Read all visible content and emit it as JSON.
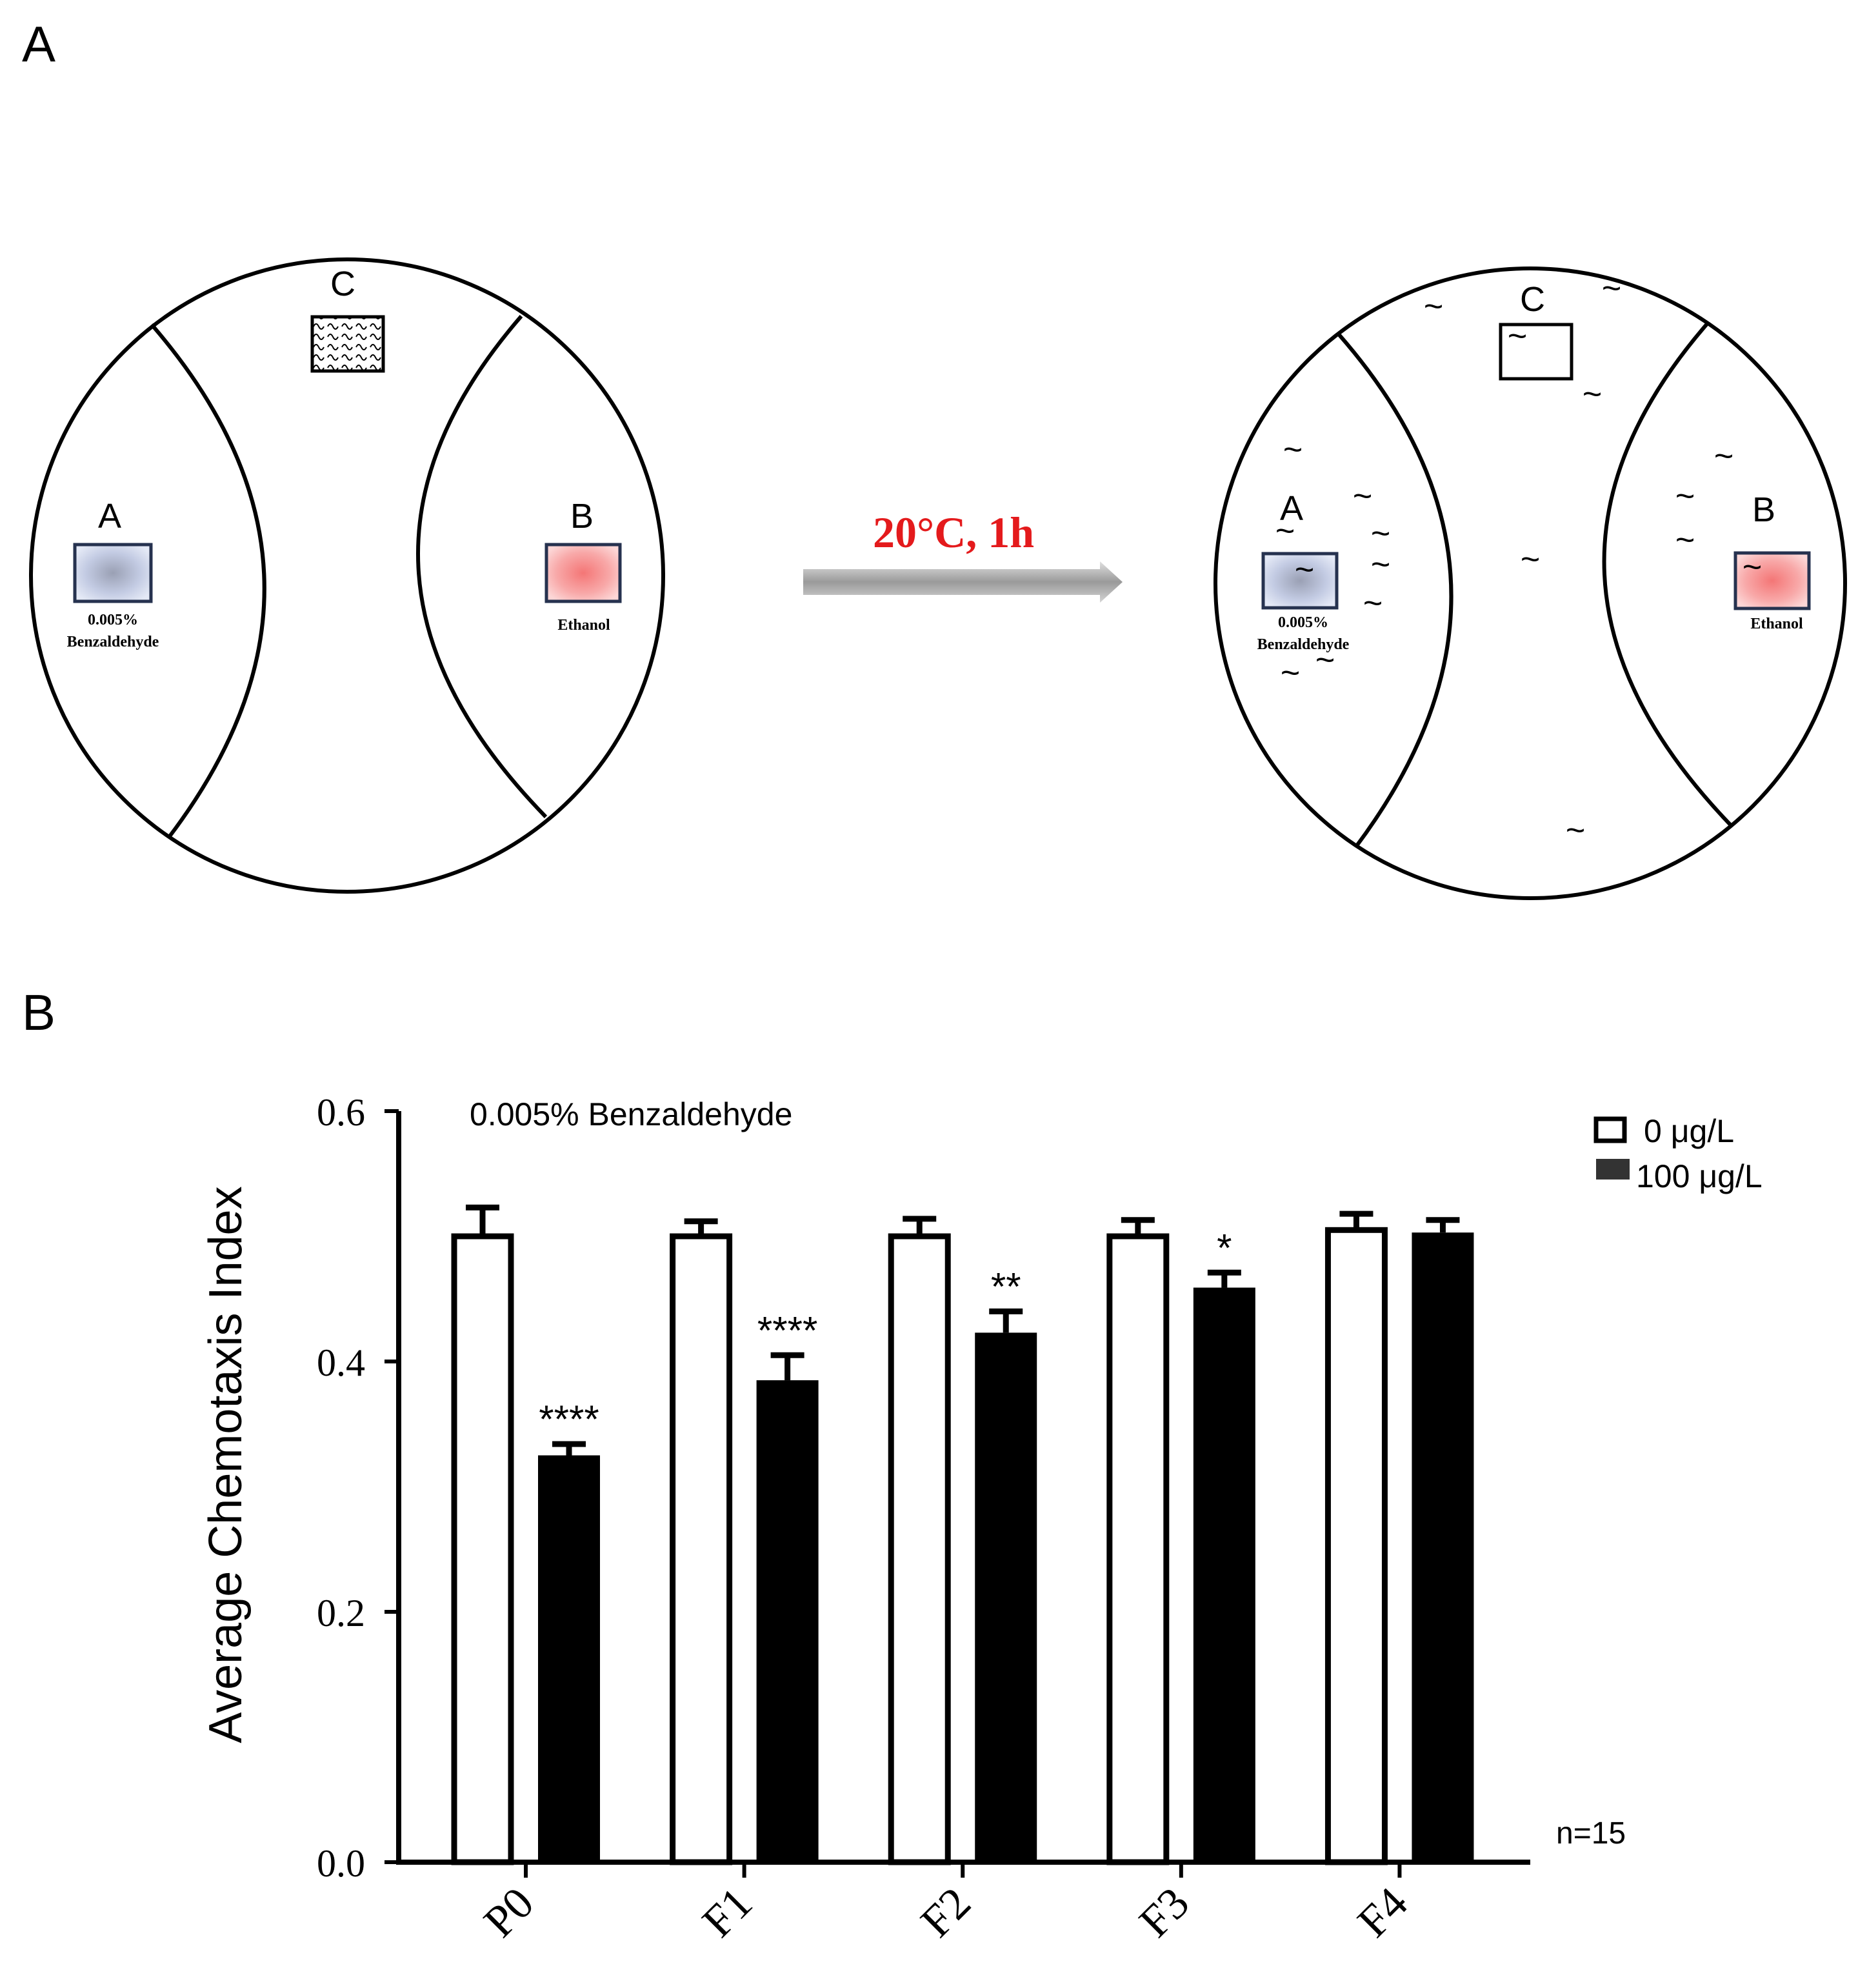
{
  "panel_a": {
    "label": "A",
    "arrow_label": "20°C, 1h",
    "left_plate": {
      "region_a_label": "A",
      "region_b_label": "B",
      "region_c_label": "C",
      "spot_a_text_1": "0.005%",
      "spot_a_text_2": "Benzaldehyde",
      "spot_b_text": "Ethanol"
    },
    "right_plate": {
      "region_a_label": "A",
      "region_b_label": "B",
      "region_c_label": "C",
      "spot_a_text_1": "0.005%",
      "spot_a_text_2": "Benzaldehyde",
      "spot_b_text": "Ethanol",
      "worm_glyph": "~"
    },
    "colors": {
      "arrow_label": "#e41a1c",
      "benzaldehyde_spot": "#aab6d8",
      "ethanol_spot": "#f08080",
      "arrow": "#a6a6a6"
    }
  },
  "panel_b": {
    "label": "B",
    "n_label": "n=15"
  },
  "chart_data": {
    "type": "bar",
    "title": "0.005% Benzaldehyde",
    "ylabel": "Average Chemotaxis Index",
    "xlabel": "",
    "categories": [
      "P0",
      "F1",
      "F2",
      "F3",
      "F4"
    ],
    "ylim": [
      0,
      0.6
    ],
    "yticks": [
      "0.0",
      "0.2",
      "0.4",
      "0.6"
    ],
    "series": [
      {
        "name": "0 μg/L",
        "color": "#ffffff",
        "values": [
          0.5,
          0.5,
          0.5,
          0.5,
          0.505
        ],
        "errors": [
          0.023,
          0.012,
          0.014,
          0.013,
          0.013
        ]
      },
      {
        "name": "100 μg/L",
        "color": "#000000",
        "values": [
          0.325,
          0.385,
          0.423,
          0.459,
          0.503
        ],
        "errors": [
          0.009,
          0.02,
          0.017,
          0.012,
          0.01
        ]
      }
    ],
    "significance": [
      "****",
      "****",
      "**",
      "*",
      ""
    ],
    "legend_position": "top-right",
    "grid": false
  }
}
